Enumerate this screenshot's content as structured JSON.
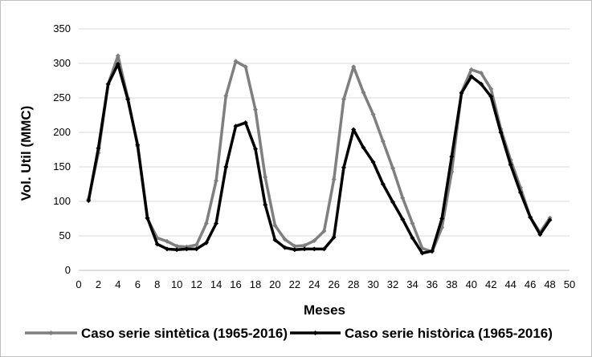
{
  "chart_data": {
    "type": "line",
    "title": "",
    "xlabel": "Meses",
    "ylabel": "Vol.  Util  (MMC)",
    "xlim": [
      0,
      50
    ],
    "ylim": [
      0,
      350
    ],
    "xticks": [
      0,
      2,
      4,
      6,
      8,
      10,
      12,
      14,
      16,
      18,
      20,
      22,
      24,
      26,
      28,
      30,
      32,
      34,
      36,
      38,
      40,
      42,
      44,
      46,
      48,
      50
    ],
    "yticks": [
      0,
      50,
      100,
      150,
      200,
      250,
      300,
      350
    ],
    "grid": "horizontal",
    "legend_position": "bottom",
    "x": [
      1,
      2,
      3,
      4,
      5,
      6,
      7,
      8,
      9,
      10,
      11,
      12,
      13,
      14,
      15,
      16,
      17,
      18,
      19,
      20,
      21,
      22,
      23,
      24,
      25,
      26,
      27,
      28,
      29,
      30,
      31,
      32,
      33,
      34,
      35,
      36,
      37,
      38,
      39,
      40,
      41,
      42,
      43,
      44,
      45,
      46,
      47,
      48
    ],
    "series": [
      {
        "name": "Caso serie sintètica (1965-2016)",
        "color": "#7f7f7f",
        "values": [
          103,
          170,
          270,
          311,
          250,
          180,
          75,
          47,
          42,
          35,
          34,
          37,
          68,
          130,
          253,
          303,
          295,
          233,
          135,
          65,
          45,
          35,
          36,
          43,
          57,
          132,
          248,
          295,
          258,
          226,
          187,
          148,
          105,
          68,
          32,
          27,
          62,
          143,
          258,
          291,
          286,
          263,
          205,
          160,
          120,
          77,
          55,
          76
        ]
      },
      {
        "name": "Caso serie històrica (1965-2016)",
        "color": "#000000",
        "values": [
          101,
          177,
          270,
          299,
          248,
          182,
          76,
          38,
          31,
          30,
          31,
          31,
          40,
          68,
          150,
          209,
          214,
          176,
          95,
          44,
          33,
          30,
          31,
          31,
          31,
          48,
          149,
          204,
          178,
          157,
          125,
          99,
          74,
          47,
          25,
          28,
          75,
          165,
          257,
          281,
          270,
          252,
          200,
          153,
          113,
          77,
          52,
          73
        ]
      }
    ]
  }
}
